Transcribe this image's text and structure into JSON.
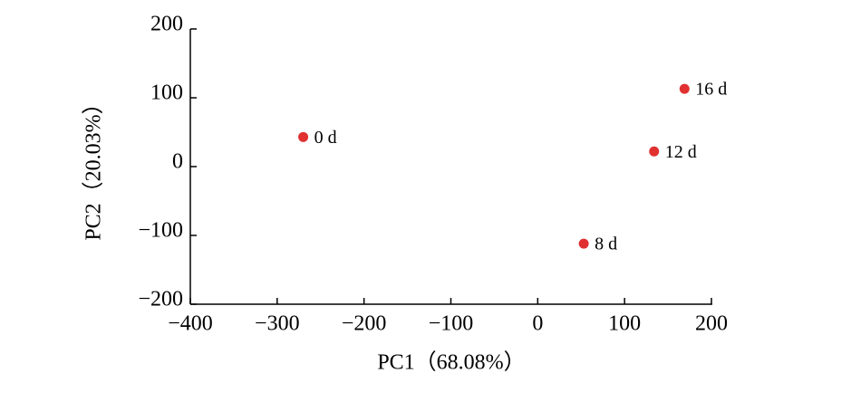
{
  "chart_data": {
    "type": "scatter",
    "x_label": "PC1（68.08%）",
    "y_label": "PC2（20.03%）",
    "labels": [
      "0 d",
      "8 d",
      "12 d",
      "16 d"
    ],
    "x": [
      -270,
      53,
      134,
      169
    ],
    "values": [
      43,
      -112,
      22,
      113
    ],
    "color": "#e03030",
    "xlim": [
      -400,
      200
    ],
    "xticks": [
      {
        "value": -400,
        "label": "−400"
      },
      {
        "value": -300,
        "label": "−300"
      },
      {
        "value": -200,
        "label": "−200"
      },
      {
        "value": -100,
        "label": "−100"
      },
      0,
      100,
      200
    ],
    "ylim": [
      -200,
      200
    ],
    "yticks": [
      {
        "value": -200,
        "label": "−200"
      },
      {
        "value": -100,
        "label": "−100"
      },
      0,
      100,
      200
    ],
    "grid": false
  }
}
